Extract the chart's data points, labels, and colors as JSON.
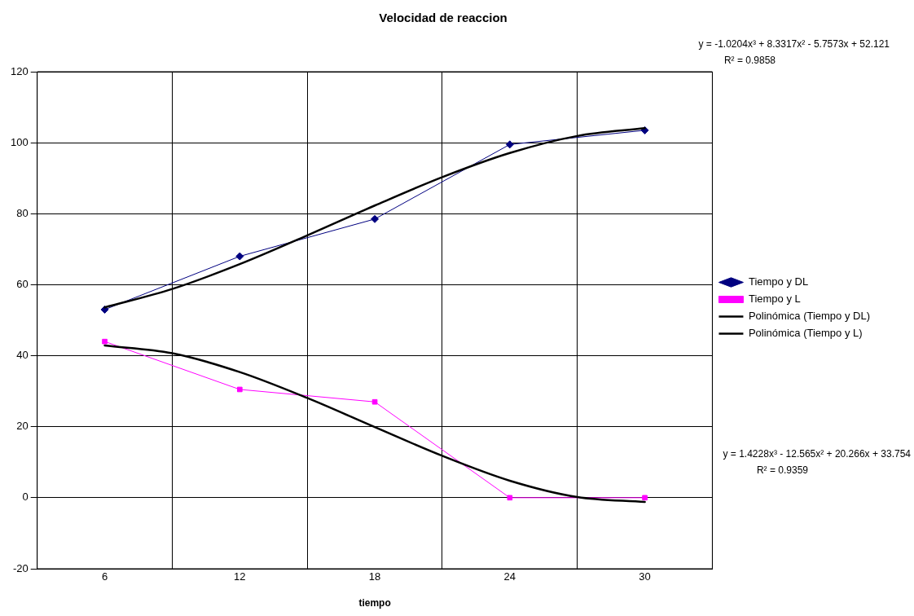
{
  "chart_data": {
    "type": "line",
    "title": "Velocidad de reaccion",
    "xlabel": "tiempo",
    "x": [
      6,
      12,
      18,
      24,
      30
    ],
    "xlim": [
      3,
      33
    ],
    "xticks": [
      {
        "value": 3,
        "label": null
      },
      6,
      {
        "value": 9,
        "label": null
      },
      12,
      {
        "value": 15,
        "label": null
      },
      18,
      {
        "value": 21,
        "label": null
      },
      24,
      {
        "value": 27,
        "label": null
      },
      30,
      {
        "value": 33,
        "label": null
      }
    ],
    "ylim": [
      -20,
      120
    ],
    "yticks": [
      -20,
      0,
      20,
      40,
      60,
      80,
      100,
      120
    ],
    "grid": true,
    "legend": "right",
    "line_style": "solid",
    "series": [
      {
        "name": "Tiempo y DL",
        "color": "#000080",
        "marker": "diamond",
        "values": [
          53,
          68,
          78.5,
          99.5,
          103.5
        ]
      },
      {
        "name": "Tiempo y L",
        "color": "#ff00ff",
        "marker": "square",
        "values": [
          44,
          30.5,
          27,
          0,
          0
        ]
      },
      {
        "name": "Polinómica (Tiempo y DL)",
        "type": "line",
        "color": "#000000",
        "marker": "none",
        "x": [
          6,
          9,
          12,
          15,
          18,
          21,
          24,
          27,
          30
        ],
        "values": [
          53.6,
          58.8,
          65.8,
          73.9,
          82.3,
          90.3,
          97.1,
          101.9,
          104.1
        ]
      },
      {
        "name": "Polinómica (Tiempo y L)",
        "type": "line",
        "color": "#000000",
        "marker": "none",
        "x": [
          6,
          9,
          12,
          15,
          18,
          21,
          24,
          27,
          30
        ],
        "values": [
          42.9,
          40.7,
          35.4,
          28.1,
          19.9,
          11.8,
          4.8,
          0.2,
          -1.2
        ]
      }
    ],
    "annotations": [
      "y = -1.0204x³ + 8.3317x² - 5.7573x + 52.121",
      "R² = 0.9858",
      "y = 1.4228x³ - 12.565x² + 20.266x + 33.754",
      "R² = 0.9359"
    ]
  }
}
